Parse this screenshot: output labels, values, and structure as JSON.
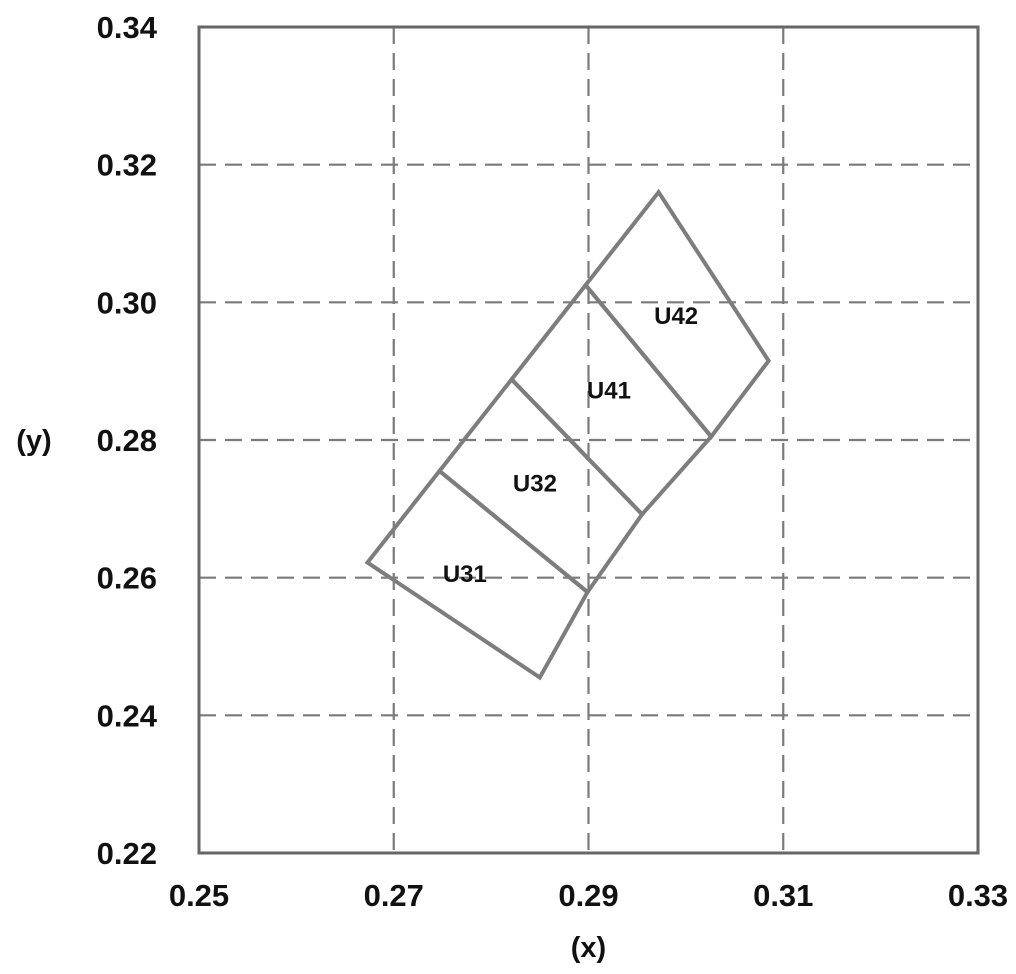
{
  "chart_data": {
    "type": "diagram",
    "title": "",
    "xlabel": "(x)",
    "ylabel": "(y)",
    "xlim": [
      0.25,
      0.33
    ],
    "ylim": [
      0.22,
      0.34
    ],
    "x_ticks": [
      "0.25",
      "0.27",
      "0.29",
      "0.31",
      "0.33"
    ],
    "y_ticks": [
      "0.22",
      "0.24",
      "0.26",
      "0.28",
      "0.30",
      "0.32",
      "0.34"
    ],
    "x_tick_values": [
      0.25,
      0.27,
      0.29,
      0.31,
      0.33
    ],
    "y_tick_values": [
      0.22,
      0.24,
      0.26,
      0.28,
      0.3,
      0.32,
      0.34
    ],
    "grid": true,
    "grid_style": "dashed",
    "colors": {
      "frame": "#666666",
      "grid": "#7a7a7a",
      "region_outline": "#7d7d7d",
      "text": "#111111"
    },
    "regions": [
      {
        "name": "U31",
        "vertices": [
          [
            0.2673,
            0.2622
          ],
          [
            0.2747,
            0.2755
          ],
          [
            0.2899,
            0.2579
          ],
          [
            0.285,
            0.2455
          ]
        ]
      },
      {
        "name": "U32",
        "vertices": [
          [
            0.2747,
            0.2755
          ],
          [
            0.2821,
            0.2888
          ],
          [
            0.2955,
            0.2692
          ],
          [
            0.2899,
            0.2579
          ]
        ]
      },
      {
        "name": "U41",
        "vertices": [
          [
            0.2821,
            0.2888
          ],
          [
            0.2897,
            0.3025
          ],
          [
            0.3026,
            0.2805
          ],
          [
            0.2955,
            0.2692
          ]
        ]
      },
      {
        "name": "U42",
        "vertices": [
          [
            0.2897,
            0.3025
          ],
          [
            0.2972,
            0.316
          ],
          [
            0.3085,
            0.2915
          ],
          [
            0.3026,
            0.2805
          ]
        ]
      }
    ],
    "region_label_positions": [
      {
        "name": "U31",
        "x": 0.2773,
        "y": 0.2605
      },
      {
        "name": "U32",
        "x": 0.2845,
        "y": 0.2737
      },
      {
        "name": "U41",
        "x": 0.2921,
        "y": 0.2872
      },
      {
        "name": "U42",
        "x": 0.299,
        "y": 0.298
      }
    ]
  }
}
